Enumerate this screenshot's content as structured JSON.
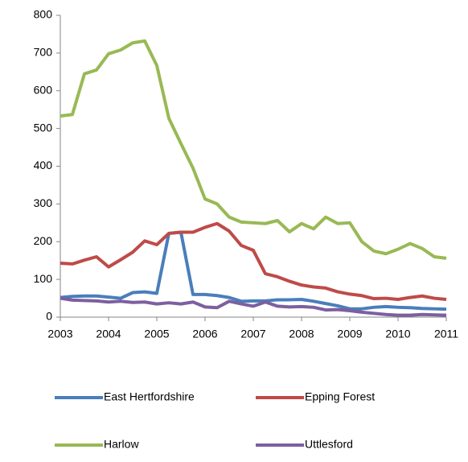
{
  "chart_data": {
    "type": "line",
    "x": [
      2003,
      2003.25,
      2003.5,
      2003.75,
      2004,
      2004.25,
      2004.5,
      2004.75,
      2005,
      2005.25,
      2005.5,
      2005.75,
      2006,
      2006.25,
      2006.5,
      2006.75,
      2007,
      2007.25,
      2007.5,
      2007.75,
      2008,
      2008.25,
      2008.5,
      2008.75,
      2009,
      2009.25,
      2009.5,
      2009.75,
      2010,
      2010.25,
      2010.5,
      2010.75,
      2011
    ],
    "series": [
      {
        "name": "East Hertfordshire",
        "color": "#4a7ebb",
        "values": [
          52,
          55,
          56,
          56,
          53,
          50,
          65,
          67,
          63,
          222,
          225,
          60,
          60,
          57,
          52,
          42,
          43,
          43,
          46,
          46,
          47,
          42,
          36,
          30,
          22,
          22,
          26,
          28,
          26,
          25,
          23,
          22,
          21
        ]
      },
      {
        "name": "Epping Forest",
        "color": "#be4b48",
        "values": [
          143,
          141,
          151,
          160,
          133,
          152,
          172,
          202,
          192,
          222,
          225,
          225,
          238,
          248,
          228,
          190,
          177,
          115,
          107,
          95,
          85,
          80,
          77,
          67,
          61,
          57,
          49,
          50,
          47,
          52,
          56,
          50,
          47
        ]
      },
      {
        "name": "Harlow",
        "color": "#98b954",
        "values": [
          533,
          537,
          645,
          655,
          698,
          708,
          727,
          732,
          667,
          527,
          460,
          395,
          313,
          300,
          265,
          252,
          250,
          248,
          256,
          226,
          248,
          234,
          265,
          248,
          250,
          200,
          175,
          168,
          180,
          195,
          182,
          160,
          156
        ]
      },
      {
        "name": "Uttlesford",
        "color": "#7d5fa0",
        "values": [
          50,
          45,
          44,
          43,
          40,
          42,
          39,
          40,
          35,
          38,
          35,
          40,
          27,
          25,
          42,
          35,
          29,
          40,
          29,
          27,
          28,
          26,
          19,
          20,
          17,
          13,
          10,
          7,
          5,
          5,
          7,
          6,
          5
        ]
      }
    ],
    "xlim": [
      2003,
      2011
    ],
    "xticks": [
      2003,
      2004,
      2005,
      2006,
      2007,
      2008,
      2009,
      2010,
      2011
    ],
    "ylim": [
      0,
      800
    ],
    "yticks": [
      0,
      100,
      200,
      300,
      400,
      500,
      600,
      700,
      800
    ],
    "grid": false
  }
}
